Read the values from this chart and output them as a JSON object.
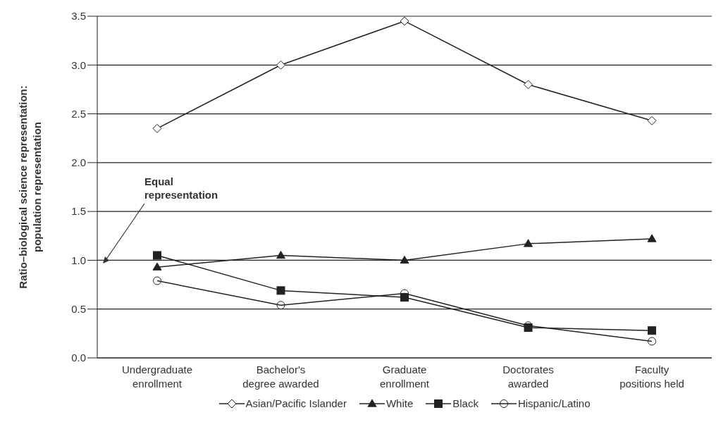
{
  "chart_data": {
    "type": "line",
    "ylabel": "Ratio–biological science representation:\npopulation representation",
    "categories": [
      "Undergraduate enrollment",
      "Bachelor's degree awarded",
      "Graduate enrollment",
      "Doctorates awarded",
      "Faculty positions held"
    ],
    "series": [
      {
        "name": "Asian/Pacific Islander",
        "color": "#222222",
        "marker": "diamond",
        "values": [
          2.35,
          3.0,
          3.45,
          2.8,
          2.43
        ]
      },
      {
        "name": "White",
        "color": "#222222",
        "marker": "triangle",
        "values": [
          0.93,
          1.05,
          1.0,
          1.17,
          1.22
        ]
      },
      {
        "name": "Black",
        "color": "#222222",
        "marker": "square",
        "values": [
          1.05,
          0.69,
          0.62,
          0.31,
          0.28
        ]
      },
      {
        "name": "Hispanic/Latino",
        "color": "#222222",
        "marker": "circle",
        "values": [
          0.79,
          0.54,
          0.66,
          0.33,
          0.17
        ]
      }
    ],
    "ylim": [
      0,
      3.5
    ],
    "yticks": [
      {
        "value": 0,
        "label": "0.0"
      },
      0.5,
      {
        "value": 1,
        "label": "1.0"
      },
      1.5,
      {
        "value": 2,
        "label": "2.0"
      },
      2.5,
      {
        "value": 3,
        "label": "3.0"
      },
      3.5
    ],
    "grid": "y",
    "legend": "bottom",
    "line_style": "solid",
    "annotations": [
      "Equal representation"
    ]
  }
}
